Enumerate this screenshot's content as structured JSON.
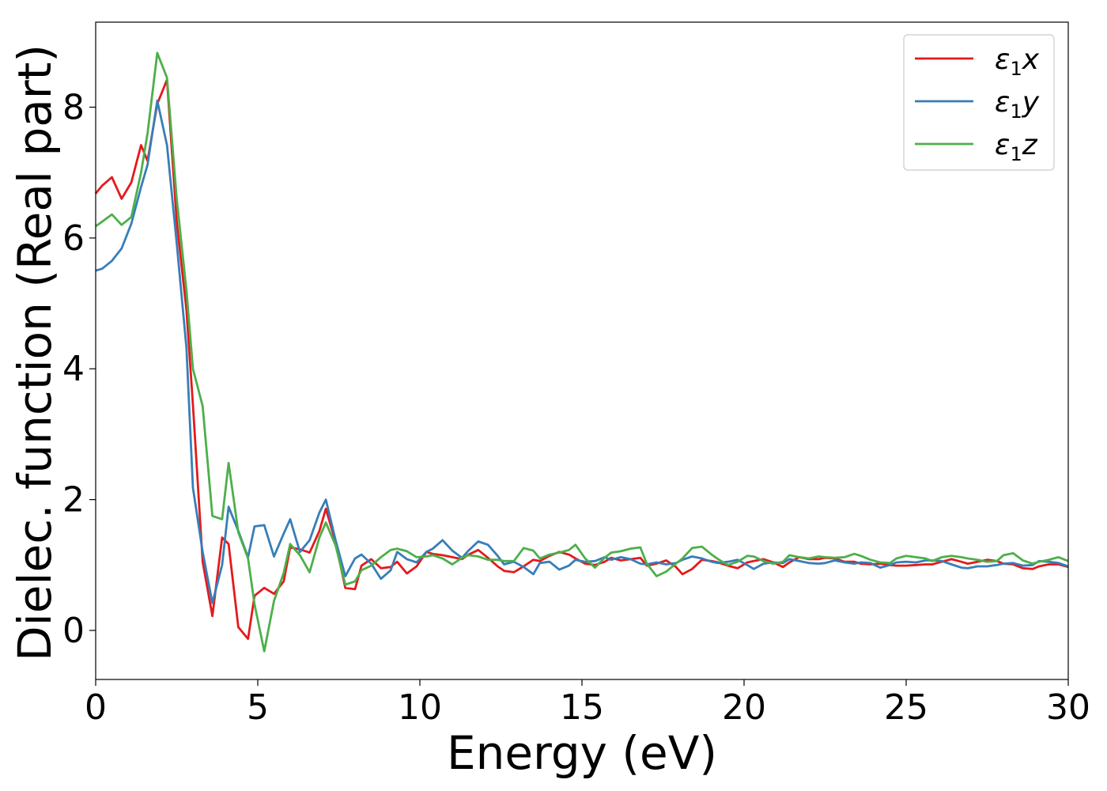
{
  "chart_data": {
    "type": "line",
    "title": "",
    "xlabel": "Energy (eV)",
    "ylabel": "Dielec. function (Real part)",
    "xlim": [
      0,
      30
    ],
    "ylim": [
      -0.75,
      9.3
    ],
    "xticks": [
      0,
      5,
      10,
      15,
      20,
      25,
      30
    ],
    "yticks": [
      0,
      2,
      4,
      6,
      8
    ],
    "grid": false,
    "legend_position": "top-right",
    "x": [
      0.0,
      0.2,
      0.5,
      0.8,
      1.1,
      1.4,
      1.6,
      1.9,
      2.2,
      2.5,
      2.8,
      3.0,
      3.3,
      3.6,
      3.9,
      4.1,
      4.4,
      4.7,
      4.9,
      5.2,
      5.5,
      5.8,
      6.0,
      6.3,
      6.6,
      6.9,
      7.1,
      7.4,
      7.7,
      8.0,
      8.2,
      8.5,
      8.8,
      9.1,
      9.3,
      9.6,
      9.9,
      10.2,
      10.4,
      10.7,
      11.0,
      11.3,
      11.5,
      11.8,
      12.1,
      12.4,
      12.6,
      12.9,
      13.2,
      13.5,
      13.7,
      14.0,
      14.3,
      14.6,
      14.8,
      15.1,
      15.4,
      15.7,
      15.9,
      16.2,
      16.5,
      16.8,
      17.0,
      17.3,
      17.6,
      17.9,
      18.1,
      18.4,
      18.7,
      19.0,
      19.2,
      19.5,
      19.8,
      20.1,
      20.3,
      20.6,
      20.9,
      21.2,
      21.4,
      21.7,
      22.0,
      22.3,
      22.5,
      22.8,
      23.1,
      23.4,
      23.6,
      23.9,
      24.2,
      24.5,
      24.7,
      25.0,
      25.3,
      25.6,
      25.8,
      26.1,
      26.4,
      26.7,
      26.9,
      27.2,
      27.5,
      27.8,
      28.0,
      28.3,
      28.6,
      28.9,
      29.1,
      29.4,
      29.7,
      30.0
    ],
    "series": [
      {
        "name": "ε1x",
        "base": "ε",
        "sub": "1",
        "var": "x",
        "color": "#e41a1c",
        "values": [
          6.68,
          6.8,
          6.93,
          6.6,
          6.85,
          7.42,
          7.18,
          8.05,
          8.42,
          6.25,
          4.9,
          3.45,
          1.05,
          0.22,
          1.42,
          1.32,
          0.05,
          -0.13,
          0.53,
          0.65,
          0.56,
          0.75,
          1.27,
          1.24,
          1.19,
          1.52,
          1.86,
          1.35,
          0.65,
          0.63,
          0.99,
          1.09,
          0.95,
          0.97,
          1.05,
          0.87,
          0.98,
          1.2,
          1.17,
          1.15,
          1.12,
          1.09,
          1.16,
          1.23,
          1.11,
          0.98,
          0.91,
          0.89,
          0.98,
          1.08,
          1.06,
          1.14,
          1.2,
          1.16,
          1.1,
          1.02,
          1.0,
          1.05,
          1.11,
          1.07,
          1.09,
          1.11,
          0.99,
          1.02,
          1.07,
          0.97,
          0.86,
          0.94,
          1.08,
          1.06,
          1.04,
          0.99,
          0.95,
          1.04,
          1.06,
          1.09,
          1.04,
          0.97,
          1.04,
          1.12,
          1.09,
          1.09,
          1.11,
          1.1,
          1.05,
          1.05,
          1.02,
          1.01,
          1.02,
          1.0,
          0.99,
          0.99,
          1.0,
          1.01,
          1.01,
          1.05,
          1.09,
          1.05,
          1.02,
          1.05,
          1.08,
          1.06,
          1.02,
          1.01,
          0.95,
          0.94,
          0.98,
          1.01,
          1.01,
          0.97
        ]
      },
      {
        "name": "ε1y",
        "base": "ε",
        "sub": "1",
        "var": "y",
        "color": "#377eb8",
        "values": [
          5.5,
          5.53,
          5.65,
          5.84,
          6.22,
          6.78,
          7.12,
          8.1,
          7.42,
          5.92,
          4.32,
          2.18,
          1.2,
          0.42,
          1.0,
          1.89,
          1.52,
          1.12,
          1.59,
          1.61,
          1.13,
          1.48,
          1.7,
          1.2,
          1.38,
          1.8,
          2.0,
          1.38,
          0.83,
          1.1,
          1.16,
          1.02,
          0.79,
          0.92,
          1.2,
          1.09,
          1.04,
          1.2,
          1.25,
          1.38,
          1.22,
          1.11,
          1.22,
          1.36,
          1.31,
          1.14,
          1.01,
          1.05,
          0.97,
          0.86,
          1.03,
          1.05,
          0.93,
          0.99,
          1.08,
          1.05,
          1.06,
          1.12,
          1.08,
          1.12,
          1.09,
          1.02,
          1.01,
          1.04,
          1.01,
          1.03,
          1.08,
          1.13,
          1.1,
          1.05,
          1.03,
          1.05,
          1.08,
          1.0,
          0.94,
          1.02,
          1.04,
          1.03,
          1.09,
          1.06,
          1.03,
          1.02,
          1.03,
          1.07,
          1.04,
          1.02,
          1.04,
          1.03,
          0.96,
          1.0,
          1.04,
          1.05,
          1.04,
          1.07,
          1.07,
          1.06,
          1.01,
          0.96,
          0.95,
          0.98,
          0.98,
          1.0,
          1.02,
          1.03,
          0.99,
          1.0,
          1.06,
          1.05,
          1.03,
          0.98
        ]
      },
      {
        "name": "ε1z",
        "base": "ε",
        "sub": "1",
        "var": "z",
        "color": "#4daf4a",
        "values": [
          6.18,
          6.25,
          6.36,
          6.2,
          6.32,
          7.0,
          7.6,
          8.83,
          8.45,
          6.6,
          5.2,
          4.0,
          3.43,
          1.75,
          1.7,
          2.56,
          1.5,
          1.1,
          0.4,
          -0.32,
          0.45,
          0.88,
          1.32,
          1.15,
          0.89,
          1.42,
          1.65,
          1.3,
          0.7,
          0.75,
          0.92,
          0.99,
          1.12,
          1.23,
          1.25,
          1.21,
          1.12,
          1.13,
          1.15,
          1.1,
          1.01,
          1.11,
          1.15,
          1.13,
          1.08,
          1.08,
          1.06,
          1.06,
          1.26,
          1.22,
          1.1,
          1.16,
          1.19,
          1.23,
          1.31,
          1.1,
          0.96,
          1.11,
          1.19,
          1.21,
          1.25,
          1.27,
          1.02,
          0.83,
          0.9,
          1.02,
          1.1,
          1.26,
          1.28,
          1.16,
          1.09,
          1.0,
          1.05,
          1.14,
          1.13,
          1.06,
          1.02,
          1.05,
          1.15,
          1.12,
          1.1,
          1.13,
          1.12,
          1.11,
          1.12,
          1.17,
          1.14,
          1.08,
          1.04,
          1.03,
          1.1,
          1.14,
          1.12,
          1.1,
          1.06,
          1.12,
          1.14,
          1.12,
          1.1,
          1.08,
          1.05,
          1.06,
          1.15,
          1.18,
          1.07,
          1.02,
          1.05,
          1.08,
          1.12,
          1.06
        ]
      }
    ]
  }
}
